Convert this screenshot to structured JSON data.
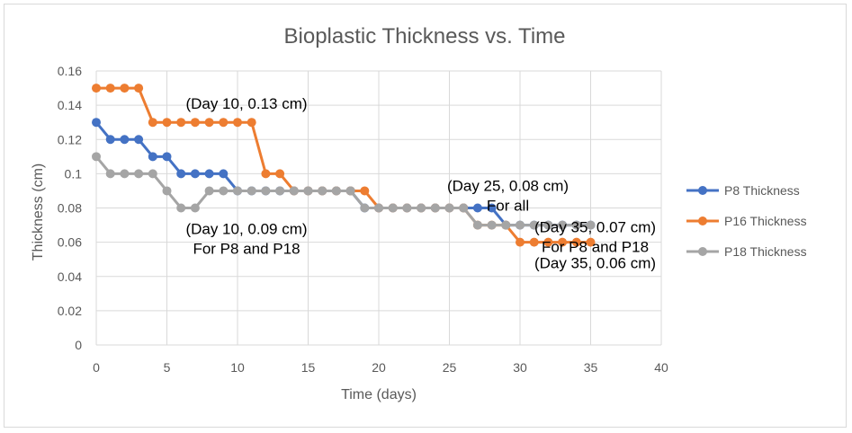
{
  "chart_data": {
    "type": "line",
    "title": "Bioplastic Thickness vs. Time",
    "xlabel": "Time (days)",
    "ylabel": "Thickness (cm)",
    "xlim": [
      0,
      40
    ],
    "ylim": [
      0,
      0.16
    ],
    "xticks": [
      0,
      5,
      10,
      15,
      20,
      25,
      30,
      35,
      40
    ],
    "xtick_labels": [
      "0",
      "5",
      "10",
      "15",
      "20",
      "25",
      "30",
      "35",
      "40"
    ],
    "yticks": [
      0,
      0.02,
      0.04,
      0.06,
      0.08,
      0.1,
      0.12,
      0.14,
      0.16
    ],
    "ytick_labels": [
      "0",
      "0.02",
      "0.04",
      "0.06",
      "0.08",
      "0.1",
      "0.12",
      "0.14",
      "0.16"
    ],
    "grid": true,
    "legend_position": "right",
    "series": [
      {
        "name": "P8 Thickness",
        "color": "#4472C4",
        "x": [
          0,
          1,
          2,
          3,
          4,
          5,
          6,
          7,
          8,
          9,
          10,
          11,
          12,
          13,
          14,
          15,
          16,
          17,
          18,
          19,
          20,
          21,
          22,
          23,
          24,
          25,
          26,
          27,
          28,
          29,
          30,
          31,
          32,
          33,
          34,
          35
        ],
        "y": [
          0.13,
          0.12,
          0.12,
          0.12,
          0.11,
          0.11,
          0.1,
          0.1,
          0.1,
          0.1,
          0.09,
          0.09,
          0.09,
          0.09,
          0.09,
          0.09,
          0.09,
          0.09,
          0.09,
          0.08,
          0.08,
          0.08,
          0.08,
          0.08,
          0.08,
          0.08,
          0.08,
          0.08,
          0.08,
          0.07,
          0.07,
          0.07,
          0.07,
          0.07,
          0.07,
          0.07
        ]
      },
      {
        "name": "P16 Thickness",
        "color": "#ED7D31",
        "x": [
          0,
          1,
          2,
          3,
          4,
          5,
          6,
          7,
          8,
          9,
          10,
          11,
          12,
          13,
          14,
          15,
          16,
          17,
          18,
          19,
          20,
          21,
          22,
          23,
          24,
          25,
          26,
          27,
          28,
          29,
          30,
          31,
          32,
          33,
          34,
          35
        ],
        "y": [
          0.15,
          0.15,
          0.15,
          0.15,
          0.13,
          0.13,
          0.13,
          0.13,
          0.13,
          0.13,
          0.13,
          0.13,
          0.1,
          0.1,
          0.09,
          0.09,
          0.09,
          0.09,
          0.09,
          0.09,
          0.08,
          0.08,
          0.08,
          0.08,
          0.08,
          0.08,
          0.08,
          0.07,
          0.07,
          0.07,
          0.06,
          0.06,
          0.06,
          0.06,
          0.06,
          0.06
        ]
      },
      {
        "name": "P18 Thickness",
        "color": "#A5A5A5",
        "x": [
          0,
          1,
          2,
          3,
          4,
          5,
          6,
          7,
          8,
          9,
          10,
          11,
          12,
          13,
          14,
          15,
          16,
          17,
          18,
          19,
          20,
          21,
          22,
          23,
          24,
          25,
          26,
          27,
          28,
          29,
          30,
          31,
          32,
          33,
          34,
          35
        ],
        "y": [
          0.11,
          0.1,
          0.1,
          0.1,
          0.1,
          0.09,
          0.08,
          0.08,
          0.09,
          0.09,
          0.09,
          0.09,
          0.09,
          0.09,
          0.09,
          0.09,
          0.09,
          0.09,
          0.09,
          0.08,
          0.08,
          0.08,
          0.08,
          0.08,
          0.08,
          0.08,
          0.08,
          0.07,
          0.07,
          0.07,
          0.07,
          0.07,
          0.07,
          0.07,
          0.07,
          0.07
        ]
      }
    ],
    "annotations": [
      {
        "lines": [
          "(Day 10, 0.13 cm)"
        ],
        "at_x": 10,
        "at_y": 0.13
      },
      {
        "lines": [
          "(Day 10, 0.09 cm)",
          "For P8 and P18"
        ],
        "at_x": 10,
        "at_y": 0.09
      },
      {
        "lines": [
          "(Day 25, 0.08 cm)",
          "For all"
        ],
        "at_x": 25,
        "at_y": 0.08
      },
      {
        "lines": [
          "(Day 35, 0.07 cm)",
          "For P8 and P18"
        ],
        "at_x": 35,
        "at_y": 0.07
      },
      {
        "lines": [
          "(Day 35, 0.06 cm)"
        ],
        "at_x": 35,
        "at_y": 0.06
      }
    ]
  }
}
